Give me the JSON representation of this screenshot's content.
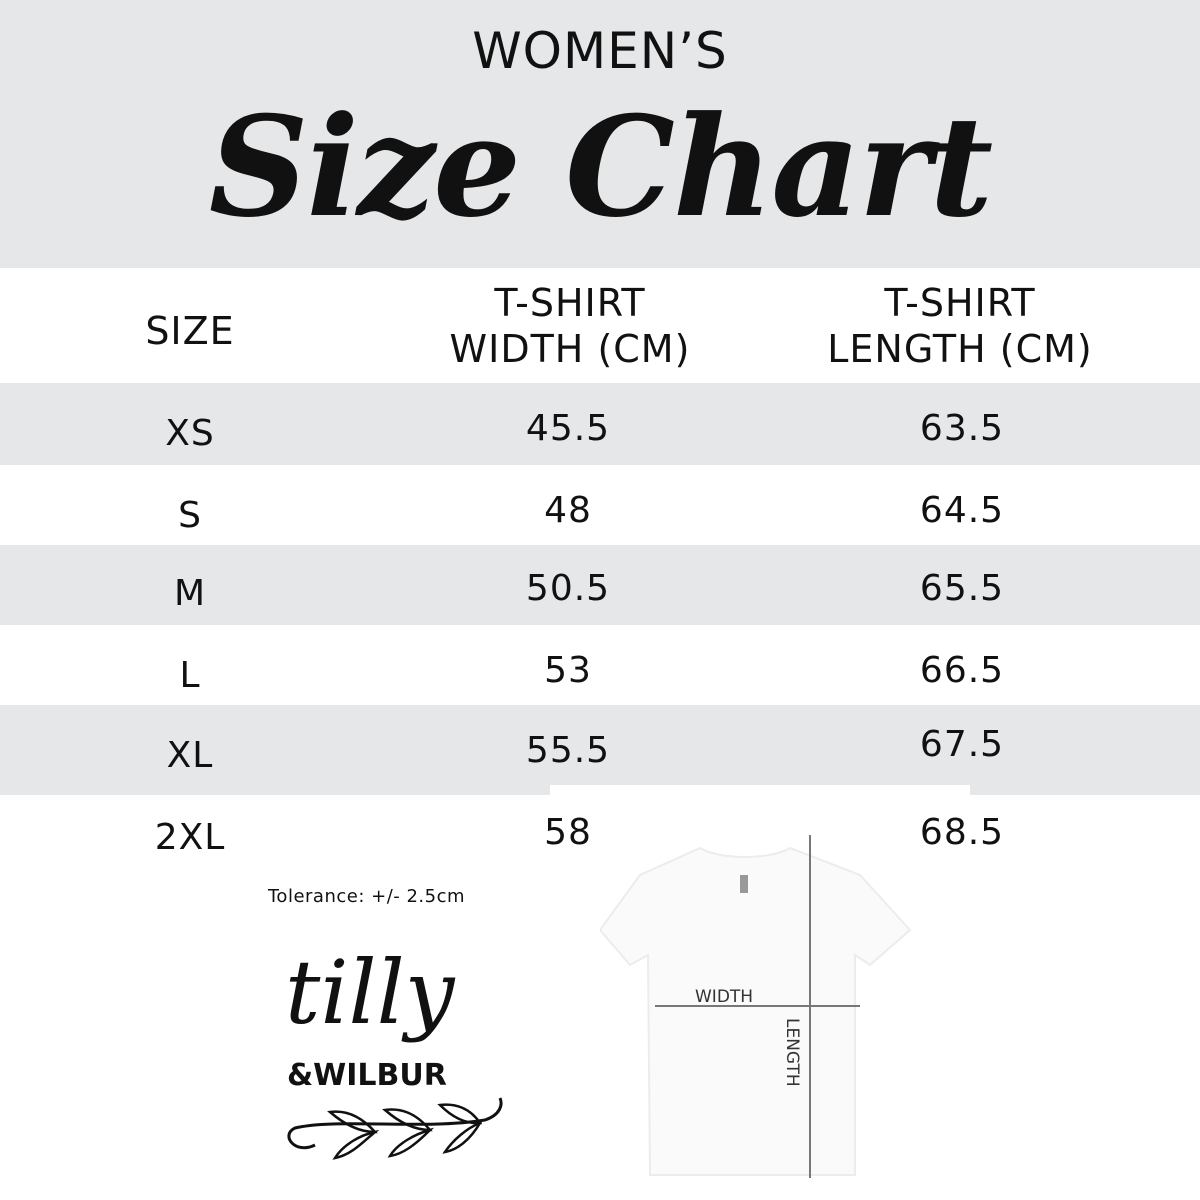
{
  "header": {
    "supertitle": "WOMEN’S",
    "title": "Size Chart"
  },
  "columns": [
    "SIZE",
    "T-SHIRT WIDTH (CM)",
    "T-SHIRT LENGTH (CM)"
  ],
  "column_lines": [
    [
      "SIZE"
    ],
    [
      "T-SHIRT",
      "WIDTH (CM)"
    ],
    [
      "T-SHIRT",
      "LENGTH (CM)"
    ]
  ],
  "rows": [
    {
      "size": "XS",
      "width": "45.5",
      "length": "63.5"
    },
    {
      "size": "S",
      "width": "48",
      "length": "64.5"
    },
    {
      "size": "M",
      "width": "50.5",
      "length": "65.5"
    },
    {
      "size": "L",
      "width": "53",
      "length": "66.5"
    },
    {
      "size": "XL",
      "width": "55.5",
      "length": "67.5"
    },
    {
      "size": "2XL",
      "width": "58",
      "length": "68.5"
    }
  ],
  "tolerance": "Tolerance: +/- 2.5cm",
  "diagram": {
    "width_label": "WIDTH",
    "length_label": "LENGTH"
  },
  "logo": {
    "text": "tilly & WILBUR"
  },
  "colors": {
    "band": "#e6e7e8",
    "text": "#111111",
    "measure_line": "#777777"
  }
}
